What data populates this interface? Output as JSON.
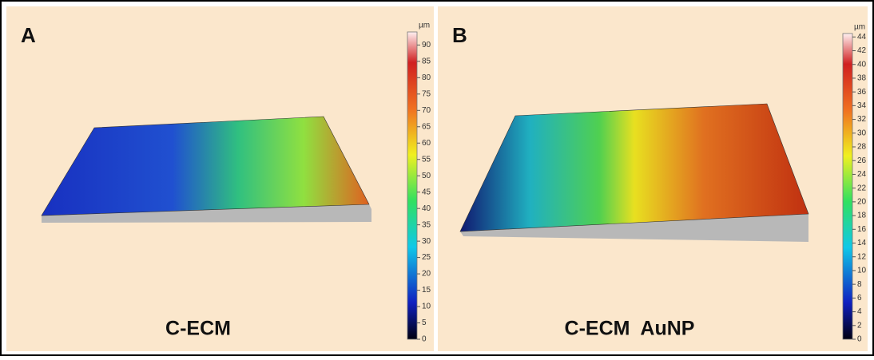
{
  "panels": [
    {
      "label": "A",
      "caption": "C-ECM",
      "colorbar": {
        "unit": "µm",
        "lim": [
          0,
          94
        ],
        "ticks": [
          0,
          5,
          10,
          15,
          20,
          25,
          30,
          35,
          40,
          45,
          50,
          55,
          60,
          65,
          70,
          75,
          80,
          85,
          90
        ]
      }
    },
    {
      "label": "B",
      "caption": "C-ECM  AuNP",
      "colorbar": {
        "unit": "µm",
        "lim": [
          0,
          44.5
        ],
        "ticks": [
          0,
          2,
          4,
          6,
          8,
          10,
          12,
          14,
          16,
          18,
          20,
          22,
          24,
          26,
          28,
          30,
          32,
          34,
          36,
          38,
          40,
          42,
          44
        ]
      }
    }
  ]
}
